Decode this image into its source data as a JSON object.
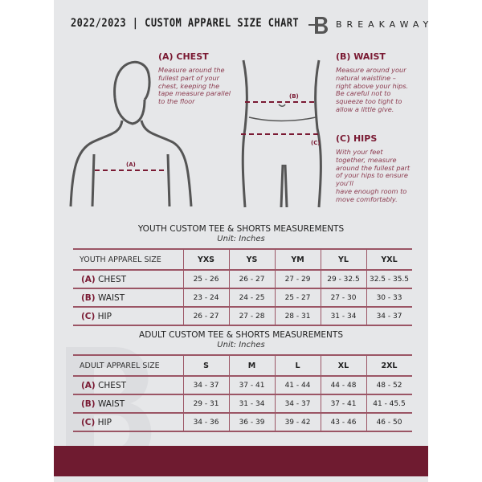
{
  "header": {
    "title": "2022/2023  |  CUSTOM APPAREL SIZE CHART",
    "brand": "BREAKAWAY",
    "logo_letter": "B"
  },
  "guide": {
    "chest": {
      "heading": "(A) CHEST",
      "marker": "(A)",
      "lines": [
        "Measure around the",
        "fullest part of your",
        "chest, keeping the",
        "tape measure parallel",
        "to the floor"
      ]
    },
    "waist": {
      "heading": "(B) WAIST",
      "marker": "(B)",
      "lines": [
        "Measure around your",
        "natural waistline –",
        "right above your hips.",
        "Be careful not to",
        "squeeze too tight to",
        "allow a little give."
      ]
    },
    "hips": {
      "heading": "(C) HIPS",
      "marker": "(C)",
      "lines": [
        "With your feet",
        "together, measure",
        "around the fullest part",
        "of your hips to ensure",
        "you'll",
        "have enough room to",
        "move comfortably."
      ]
    }
  },
  "youth": {
    "title": "YOUTH CUSTOM TEE & SHORTS MEASUREMENTS",
    "unit": "Unit: Inches",
    "header_label": "YOUTH APPAREL SIZE",
    "sizes": [
      "YXS",
      "YS",
      "YM",
      "YL",
      "YXL"
    ],
    "rows": [
      {
        "letter": "(A)",
        "name": "CHEST",
        "values": [
          "25 - 26",
          "26 - 27",
          "27 - 29",
          "29 - 32.5",
          "32.5 - 35.5"
        ]
      },
      {
        "letter": "(B)",
        "name": "WAIST",
        "values": [
          "23 - 24",
          "24 - 25",
          "25 - 27",
          "27 - 30",
          "30 - 33"
        ]
      },
      {
        "letter": "(C)",
        "name": "HIP",
        "values": [
          "26 - 27",
          "27 - 28",
          "28 - 31",
          "31 - 34",
          "34 - 37"
        ]
      }
    ]
  },
  "adult": {
    "title": "ADULT CUSTOM TEE & SHORTS MEASUREMENTS",
    "unit": "Unit: Inches",
    "header_label": "ADULT APPAREL SIZE",
    "sizes": [
      "S",
      "M",
      "L",
      "XL",
      "2XL"
    ],
    "rows": [
      {
        "letter": "(A)",
        "name": "CHEST",
        "values": [
          "34 - 37",
          "37 - 41",
          "41 - 44",
          "44 - 48",
          "48 - 52"
        ]
      },
      {
        "letter": "(B)",
        "name": "WAIST",
        "values": [
          "29 - 31",
          "31 - 34",
          "34 - 37",
          "37 - 41",
          "41 - 45.5"
        ]
      },
      {
        "letter": "(C)",
        "name": "HIP",
        "values": [
          "34 - 36",
          "36 - 39",
          "39 - 42",
          "43 - 46",
          "46 - 50"
        ]
      }
    ]
  },
  "colors": {
    "accent": "#6f1b30",
    "background": "#e6e7e9",
    "dash": "#7a1a33"
  }
}
